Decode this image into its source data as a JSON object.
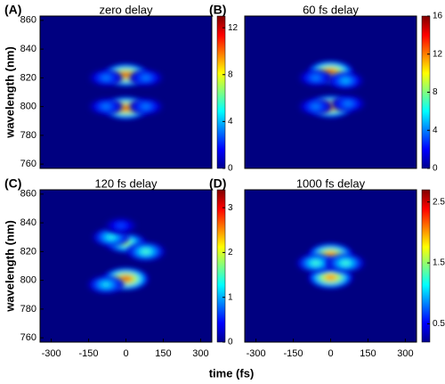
{
  "xlabel": "time (fs)",
  "chart_data": [
    {
      "type": "heatmap",
      "label": "(A)",
      "title": "zero delay",
      "ylabel": "wavelength (nm)",
      "xlim": [
        -345,
        345
      ],
      "ylim": [
        757,
        863
      ],
      "yticks": [
        760,
        780,
        800,
        820,
        840,
        860
      ],
      "clim": [
        0,
        13
      ],
      "cticks": [
        0,
        4,
        8,
        12
      ],
      "spots": [
        {
          "x": 0,
          "y": 822,
          "value": 13
        },
        {
          "x": 0,
          "y": 799,
          "value": 13
        },
        {
          "x": -80,
          "y": 820,
          "value": 4
        },
        {
          "x": -80,
          "y": 800,
          "value": 4
        },
        {
          "x": 80,
          "y": 820,
          "value": 4
        },
        {
          "x": 80,
          "y": 800,
          "value": 4
        }
      ]
    },
    {
      "type": "heatmap",
      "label": "(B)",
      "title": "60 fs delay",
      "xlim": [
        -345,
        345
      ],
      "ylim": [
        757,
        863
      ],
      "clim": [
        0,
        16
      ],
      "cticks": [
        0,
        4,
        8,
        12,
        16
      ],
      "spots": [
        {
          "x": 0,
          "y": 824,
          "value": 16
        },
        {
          "x": 0,
          "y": 800,
          "value": 15
        },
        {
          "x": -60,
          "y": 820,
          "value": 5
        },
        {
          "x": 60,
          "y": 818,
          "value": 6
        },
        {
          "x": -60,
          "y": 800,
          "value": 5
        },
        {
          "x": 70,
          "y": 802,
          "value": 5
        }
      ]
    },
    {
      "type": "heatmap",
      "label": "(C)",
      "title": "120 fs delay",
      "ylabel": "wavelength (nm)",
      "xlim": [
        -345,
        345
      ],
      "ylim": [
        757,
        863
      ],
      "xticks": [
        -300,
        -150,
        0,
        150,
        300
      ],
      "yticks": [
        760,
        780,
        800,
        820,
        840,
        860
      ],
      "clim": [
        0,
        3.4
      ],
      "cticks": [
        0,
        1,
        2,
        3
      ],
      "spots": [
        {
          "x": 0,
          "y": 826,
          "value": 2.2
        },
        {
          "x": 0,
          "y": 801,
          "value": 3.4
        },
        {
          "x": -60,
          "y": 830,
          "value": 1.6
        },
        {
          "x": 80,
          "y": 820,
          "value": 1.8
        },
        {
          "x": -80,
          "y": 797,
          "value": 1.5
        },
        {
          "x": -20,
          "y": 838,
          "value": 0.8
        }
      ]
    },
    {
      "type": "heatmap",
      "label": "(D)",
      "title": "1000 fs delay",
      "xlim": [
        -345,
        345
      ],
      "ylim": [
        757,
        863
      ],
      "xticks": [
        -300,
        -150,
        0,
        150,
        300
      ],
      "clim": [
        0.2,
        2.7
      ],
      "cticks": [
        0.5,
        1.5,
        2.5
      ],
      "spots": [
        {
          "x": 0,
          "y": 818,
          "value": 2.5
        },
        {
          "x": 0,
          "y": 802,
          "value": 2.5
        },
        {
          "x": -60,
          "y": 812,
          "value": 1.5
        },
        {
          "x": 60,
          "y": 812,
          "value": 1.5
        }
      ]
    }
  ]
}
